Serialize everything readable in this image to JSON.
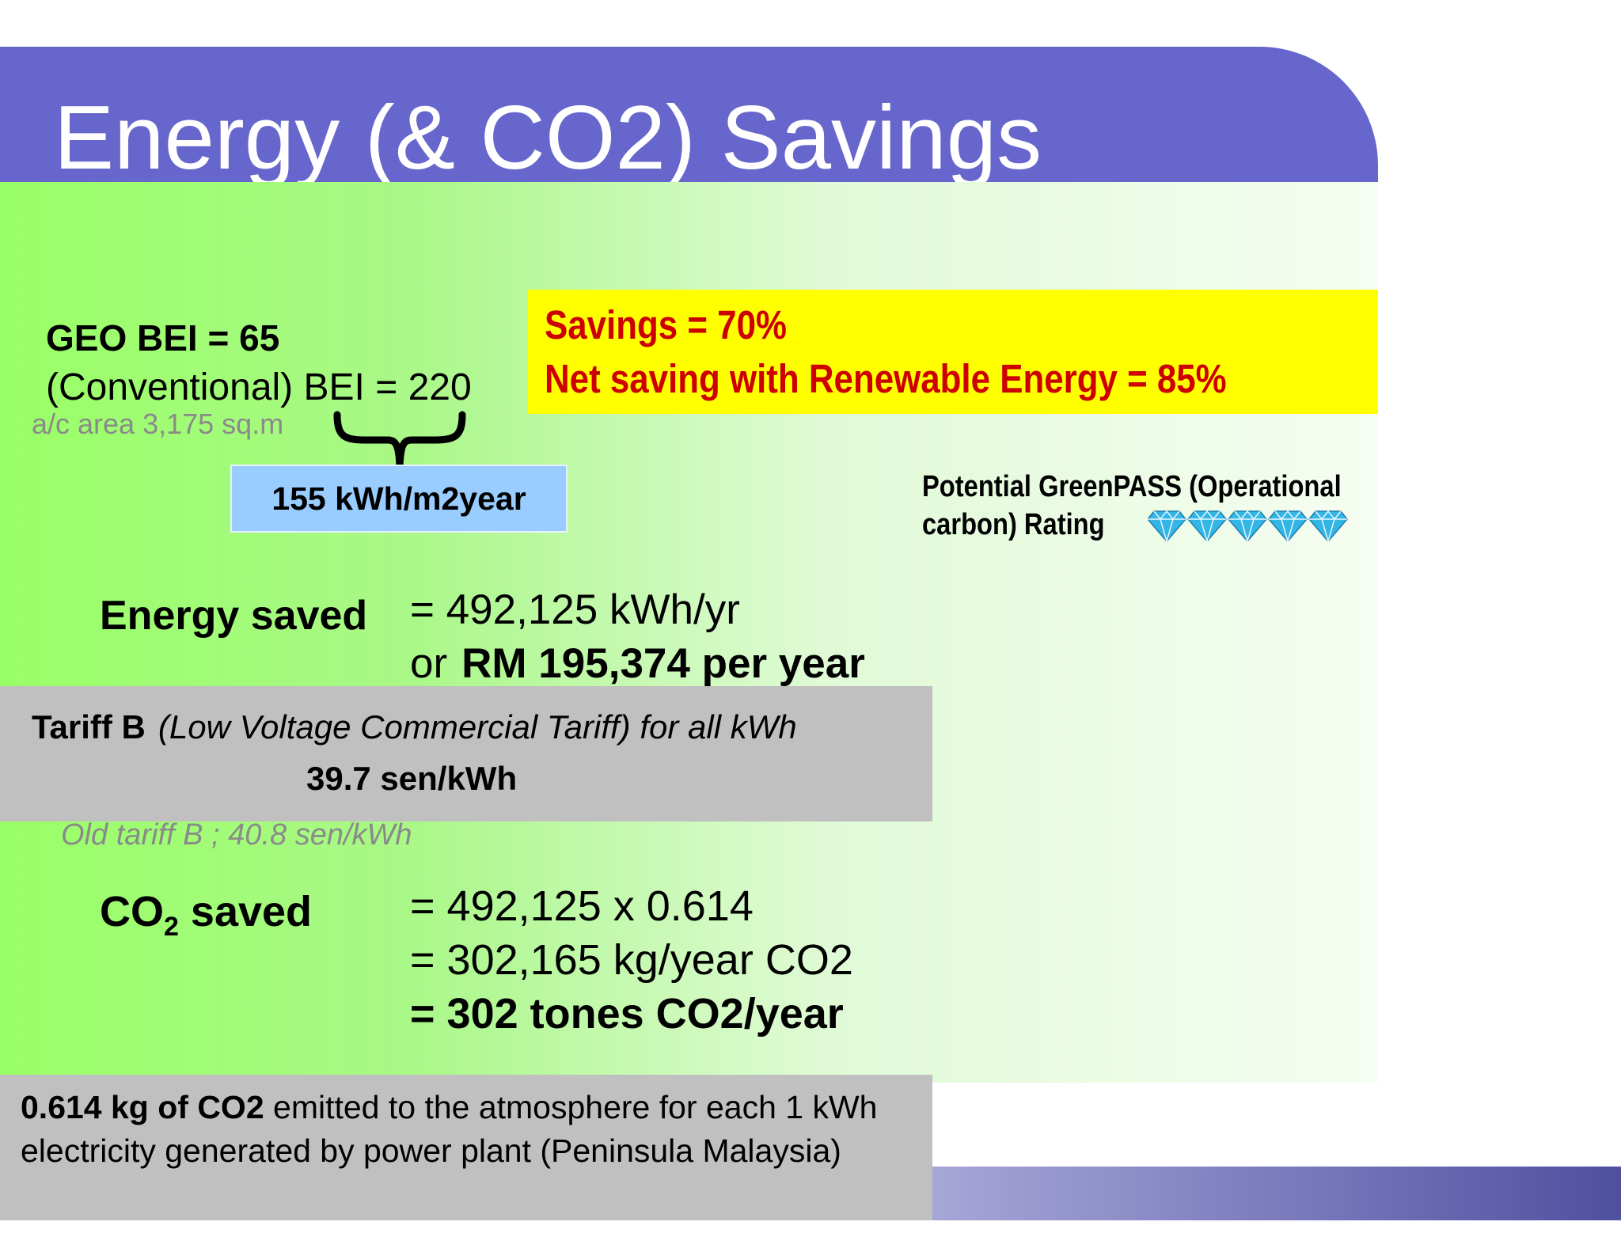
{
  "slide": {
    "title": "Energy (& CO2) Savings"
  },
  "bei": {
    "geo": "GEO BEI = 65",
    "conventional": "(Conventional) BEI = 220",
    "area": "a/c area 3,175 sq.m",
    "difference": "155 kWh/m2year"
  },
  "savings": {
    "line1": "Savings = 70%",
    "line2": "Net saving with Renewable Energy = 85%"
  },
  "greenpass": {
    "line1": "Potential GreenPASS (Operational",
    "line2": "carbon) Rating",
    "diamonds": 5,
    "diamond_color": "#33b5e5"
  },
  "energy": {
    "label": "Energy saved",
    "value": "= 492,125 kWh/yr",
    "or": "or",
    "money": "RM 195,374 per year"
  },
  "tariff": {
    "name": "Tariff B",
    "description": "(Low Voltage Commercial Tariff) for all kWh",
    "rate": "39.7 sen/kWh",
    "old": "Old tariff B ; 40.8 sen/kWh"
  },
  "co2": {
    "label_pre": "CO",
    "label_sub": "2",
    "label_post": " saved",
    "line1": "= 492,125 x 0.614",
    "line2": "= 302,165 kg/year CO2",
    "line3": "= 302 tones CO2/year"
  },
  "note": {
    "bold": "0.614 kg of CO2",
    "text": " emitted to the atmosphere for each 1 kWh electricity generated by power plant (Peninsula Malaysia)"
  },
  "colors": {
    "title_bar": "#6666cc",
    "green": "#99ff66",
    "highlight": "#ffff00",
    "savings_text": "#cc0000",
    "info_box": "#99ccff",
    "grey_box": "#c0c0c0"
  }
}
